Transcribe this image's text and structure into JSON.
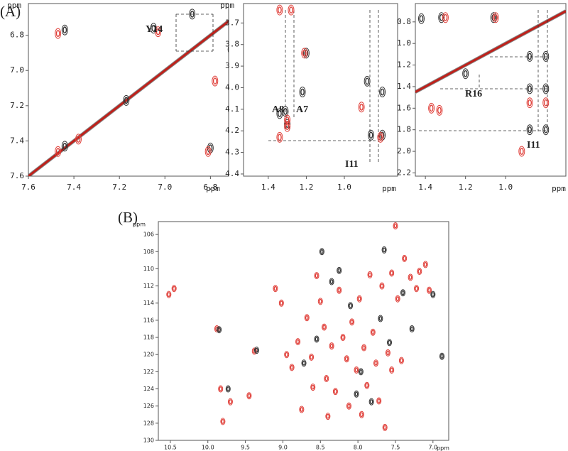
{
  "panel_labels": [
    "(A)",
    "(B)"
  ],
  "chart_data": [
    {
      "type": "scatter",
      "x_label": "ppm",
      "y_label": "ppm",
      "diagonal": true,
      "annotations": [
        "Y14"
      ],
      "xlim": [
        7.6,
        6.72
      ],
      "ylim": [
        7.6,
        6.62
      ],
      "xticks": [
        7.6,
        7.4,
        7.2,
        {
          "value": 7,
          "label": "7.0"
        },
        6.8
      ],
      "yticks": [
        6.8,
        {
          "value": 7,
          "label": "7.0"
        },
        7.2,
        7.4,
        7.6
      ],
      "series": [
        {
          "name": "black",
          "color": "#333333",
          "x": [
            7.44,
            7.05,
            6.71,
            7.44,
            6.8,
            6.88,
            7.17
          ],
          "values": [
            6.77,
            6.76,
            6.88,
            7.43,
            7.44,
            6.68,
            7.17
          ]
        },
        {
          "name": "red",
          "color": "#e0403a",
          "x": [
            7.47,
            7.03,
            6.78,
            7.47,
            6.81,
            7.38
          ],
          "values": [
            6.79,
            6.78,
            7.06,
            7.46,
            7.46,
            7.39
          ]
        }
      ]
    },
    {
      "type": "scatter",
      "x_label": "ppm",
      "y_label": "ppm",
      "diagonal": false,
      "annotations": [
        "A8",
        "A7",
        "I11"
      ],
      "xlim": [
        1.53,
        0.72
      ],
      "ylim": [
        4.41,
        3.61
      ],
      "xticks": [
        1.4,
        1.2,
        {
          "value": 1,
          "label": "1.0"
        }
      ],
      "yticks": [
        3.7,
        3.8,
        3.9,
        {
          "value": 4,
          "label": "4.0"
        },
        4.1,
        4.2,
        4.3,
        4.4
      ],
      "series": [
        {
          "name": "black",
          "color": "#333333",
          "x": [
            1.31,
            1.34,
            1.2,
            1.22,
            0.88,
            0.8,
            0.86,
            0.8,
            1.3
          ],
          "values": [
            4.11,
            4.12,
            3.84,
            4.02,
            3.97,
            4.02,
            4.22,
            4.22,
            4.17
          ]
        },
        {
          "name": "red",
          "color": "#e0403a",
          "x": [
            1.3,
            1.34,
            1.21,
            0.91,
            1.3,
            0.81,
            1.34,
            1.28
          ],
          "values": [
            4.18,
            4.23,
            3.84,
            4.09,
            4.15,
            4.23,
            3.64,
            3.64
          ]
        }
      ]
    },
    {
      "type": "scatter",
      "x_label": "ppm",
      "diagonal": true,
      "annotations": [
        "R16",
        "I11"
      ],
      "xlim": [
        1.45,
        0.7
      ],
      "ylim": [
        2.23,
        0.63
      ],
      "xticks": [
        1.4,
        1.2,
        {
          "value": 1,
          "label": "1.0"
        }
      ],
      "yticks": [
        0.8,
        {
          "value": 1,
          "label": "1.0"
        },
        1.2,
        1.4,
        1.6,
        1.8,
        {
          "value": 2,
          "label": "2.0"
        },
        2.2
      ],
      "series": [
        {
          "name": "black",
          "color": "#333333",
          "x": [
            1.32,
            1.06,
            0.88,
            0.8,
            0.88,
            0.8,
            0.88,
            0.8,
            1.42,
            1.2
          ],
          "values": [
            0.76,
            0.76,
            1.12,
            1.12,
            1.42,
            1.42,
            1.8,
            1.8,
            0.77,
            1.28
          ]
        },
        {
          "name": "red",
          "color": "#e0403a",
          "x": [
            1.3,
            1.05,
            0.88,
            0.8,
            0.92,
            1.37,
            1.33
          ],
          "values": [
            0.76,
            0.76,
            1.55,
            1.55,
            2.0,
            1.6,
            1.62
          ]
        }
      ]
    },
    {
      "type": "scatter",
      "x_label": "ppm",
      "y_label": "ppm",
      "diagonal": false,
      "annotations": [],
      "xlim": [
        10.66,
        6.79
      ],
      "ylim": [
        130,
        104.5
      ],
      "xticks": [
        10.5,
        {
          "value": 10,
          "label": "10.0"
        },
        9.5,
        {
          "value": 9,
          "label": "9.0"
        },
        8.5,
        {
          "value": 8,
          "label": "8.0"
        },
        7.5,
        {
          "value": 7,
          "label": "7.0"
        }
      ],
      "yticks": [
        106,
        108,
        110,
        112,
        114,
        116,
        118,
        120,
        122,
        124,
        126,
        128,
        130
      ],
      "series": [
        {
          "name": "red",
          "color": "#e0403a",
          "x": [
            10.45,
            10.52,
            9.88,
            9.83,
            9.8,
            9.7,
            9.45,
            9.38,
            9.1,
            9.02,
            8.95,
            8.88,
            8.8,
            8.75,
            8.68,
            8.62,
            8.55,
            8.5,
            8.45,
            8.42,
            8.35,
            8.3,
            8.25,
            8.2,
            8.15,
            8.12,
            8.08,
            8.02,
            7.98,
            7.92,
            7.88,
            7.84,
            7.8,
            7.76,
            7.72,
            7.68,
            7.64,
            7.6,
            7.55,
            7.5,
            7.47,
            7.42,
            7.38,
            7.3,
            7.22,
            7.18,
            7.1,
            7.05,
            7.55,
            8.4,
            7.95,
            8.6
          ],
          "values": [
            112.3,
            113.0,
            117.0,
            124.0,
            127.8,
            125.5,
            124.8,
            119.6,
            112.3,
            114.0,
            120.0,
            121.5,
            118.5,
            126.4,
            115.7,
            120.3,
            110.8,
            113.8,
            116.8,
            122.8,
            119.0,
            124.3,
            112.5,
            118.0,
            120.5,
            126.0,
            116.2,
            121.8,
            113.5,
            119.2,
            123.6,
            110.7,
            117.4,
            121.0,
            125.4,
            112.0,
            128.5,
            119.8,
            110.5,
            105.0,
            113.5,
            120.7,
            108.8,
            111.0,
            112.3,
            110.3,
            109.5,
            112.5,
            121.8,
            127.2,
            127.0,
            123.8
          ]
        },
        {
          "name": "black",
          "color": "#333333",
          "x": [
            9.85,
            9.73,
            9.35,
            8.72,
            8.48,
            8.35,
            8.1,
            7.96,
            7.82,
            7.7,
            7.58,
            7.4,
            7.28,
            7.0,
            6.88,
            8.25,
            8.02,
            7.65,
            8.55
          ],
          "values": [
            117.1,
            124.0,
            119.5,
            121.0,
            108.0,
            111.5,
            114.3,
            122.0,
            125.5,
            115.8,
            118.6,
            112.8,
            117.0,
            113.0,
            120.2,
            110.2,
            124.6,
            107.8,
            118.2
          ]
        }
      ]
    }
  ]
}
